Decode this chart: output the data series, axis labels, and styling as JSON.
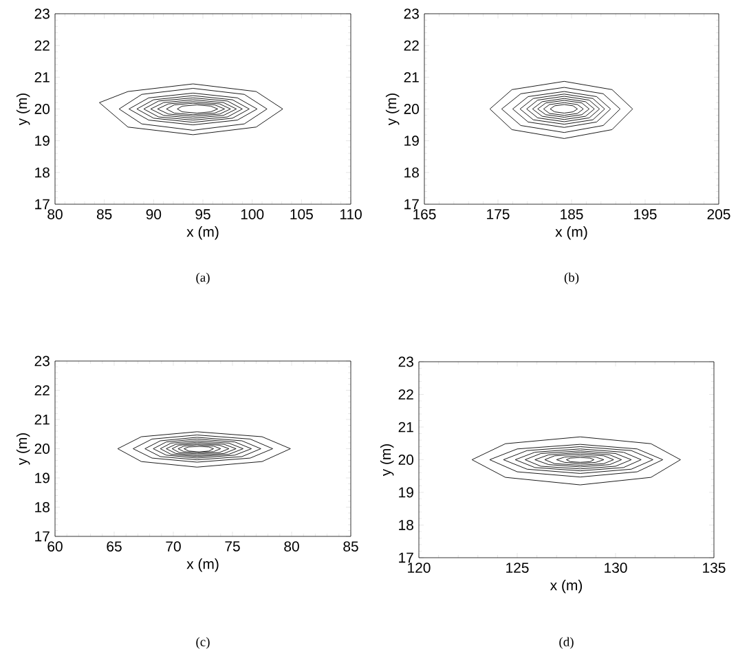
{
  "chart_data": [
    {
      "type": "line",
      "xlabel": "x (m)",
      "ylabel": "y (m)",
      "annotations": [
        "(a)"
      ],
      "marker": "none",
      "line_style": "solid",
      "xlim": [
        80,
        110
      ],
      "ylim": [
        17,
        23
      ],
      "xticks": [
        80,
        85,
        90,
        95,
        100,
        105,
        110
      ],
      "yticks": [
        17,
        18,
        19,
        20,
        21,
        22,
        23
      ],
      "series": [
        {
          "color": "#000000",
          "x": [
            84.5,
            87.4,
            94,
            100.4,
            103.1
          ],
          "values": [
            20.2,
            20.55,
            20.79,
            20.55,
            20
          ]
        },
        {
          "color": "#000000",
          "x": [
            84.5,
            87.4,
            94,
            100.4,
            103.1
          ],
          "values": [
            20.2,
            19.43,
            19.19,
            19.43,
            20
          ]
        },
        {
          "color": "#000000",
          "x": [
            86.5,
            88.8,
            94,
            99.2,
            101.5
          ],
          "values": [
            20,
            20.46,
            20.65,
            20.46,
            20
          ]
        },
        {
          "color": "#000000",
          "x": [
            86.5,
            88.8,
            94,
            99.2,
            101.5
          ],
          "values": [
            20,
            19.53,
            19.33,
            19.53,
            20
          ]
        },
        {
          "color": "#000000",
          "x": [
            87.5,
            89.5,
            94,
            98.5,
            100.5
          ],
          "values": [
            20,
            20.35,
            20.5,
            20.35,
            20
          ]
        },
        {
          "color": "#000000",
          "x": [
            87.5,
            89.5,
            94,
            98.5,
            100.5
          ],
          "values": [
            20,
            19.65,
            19.5,
            19.65,
            20
          ]
        },
        {
          "color": "#000000",
          "x": [
            88.3,
            90,
            94,
            98,
            99.7
          ],
          "values": [
            20,
            20.29,
            20.42,
            20.29,
            20
          ]
        },
        {
          "color": "#000000",
          "x": [
            88.3,
            90,
            94,
            98,
            99.7
          ],
          "values": [
            20,
            19.71,
            19.58,
            19.71,
            20
          ]
        },
        {
          "color": "#000000",
          "x": [
            89,
            90.5,
            94,
            97.5,
            99
          ],
          "values": [
            20,
            20.25,
            20.35,
            20.25,
            20
          ]
        },
        {
          "color": "#000000",
          "x": [
            89,
            90.5,
            94,
            97.5,
            99
          ],
          "values": [
            20,
            19.75,
            19.65,
            19.75,
            20
          ]
        },
        {
          "color": "#000000",
          "x": [
            89.7,
            91,
            94,
            97.1,
            98.4
          ],
          "values": [
            20,
            20.2,
            20.29,
            20.2,
            20
          ]
        },
        {
          "color": "#000000",
          "x": [
            89.7,
            91,
            94,
            97.1,
            98.4
          ],
          "values": [
            20,
            19.8,
            19.71,
            19.8,
            20
          ]
        },
        {
          "color": "#000000",
          "x": [
            90.4,
            91.5,
            94,
            96.7,
            97.8
          ],
          "values": [
            20,
            20.16,
            20.23,
            20.16,
            20
          ]
        },
        {
          "color": "#000000",
          "x": [
            90.4,
            91.5,
            94,
            96.7,
            97.8
          ],
          "values": [
            20,
            19.84,
            19.77,
            19.84,
            20
          ]
        },
        {
          "color": "#000000",
          "x": [
            91.3,
            92.1,
            94,
            96.2,
            97.2
          ],
          "values": [
            20,
            20.13,
            20.18,
            20.13,
            20
          ]
        },
        {
          "color": "#000000",
          "x": [
            91.3,
            92.1,
            94,
            96.2,
            97.2
          ],
          "values": [
            20,
            19.87,
            19.82,
            19.87,
            20
          ]
        },
        {
          "color": "#000000",
          "x": [
            92.4,
            92.9,
            94.4,
            95.8,
            96.5
          ],
          "values": [
            20,
            20.09,
            20.13,
            20.09,
            20
          ]
        },
        {
          "color": "#000000",
          "x": [
            92.4,
            92.9,
            94.4,
            95.8,
            96.5
          ],
          "values": [
            20,
            19.91,
            19.87,
            19.91,
            20
          ]
        }
      ]
    },
    {
      "type": "line",
      "xlabel": "x (m)",
      "ylabel": "y (m)",
      "annotations": [
        "(b)"
      ],
      "marker": "none",
      "line_style": "solid",
      "xlim": [
        165,
        205
      ],
      "ylim": [
        17,
        23
      ],
      "xticks": [
        165,
        175,
        185,
        195,
        205
      ],
      "yticks": [
        17,
        18,
        19,
        20,
        21,
        22,
        23
      ],
      "series": [
        {
          "color": "#000000",
          "x": [
            173.9,
            176.9,
            184,
            190.5,
            193.3
          ],
          "values": [
            20,
            20.61,
            20.87,
            20.61,
            20
          ]
        },
        {
          "color": "#000000",
          "x": [
            173.9,
            176.9,
            184,
            190.5,
            193.3
          ],
          "values": [
            20,
            19.35,
            19.07,
            19.35,
            20
          ]
        },
        {
          "color": "#000000",
          "x": [
            175.5,
            178.1,
            184,
            189.3,
            191.6
          ],
          "values": [
            20,
            20.48,
            20.68,
            20.48,
            20
          ]
        },
        {
          "color": "#000000",
          "x": [
            175.5,
            178.1,
            184,
            189.3,
            191.6
          ],
          "values": [
            20,
            19.48,
            19.26,
            19.48,
            20
          ]
        },
        {
          "color": "#000000",
          "x": [
            177,
            179.1,
            184,
            188.4,
            190.3
          ],
          "values": [
            20,
            20.39,
            20.55,
            20.39,
            20
          ]
        },
        {
          "color": "#000000",
          "x": [
            177,
            179.1,
            184,
            188.4,
            190.3
          ],
          "values": [
            20,
            19.59,
            19.42,
            19.59,
            20
          ]
        },
        {
          "color": "#000000",
          "x": [
            178,
            179.8,
            184,
            187.9,
            189.5
          ],
          "values": [
            20,
            20.33,
            20.47,
            20.33,
            20
          ]
        },
        {
          "color": "#000000",
          "x": [
            178,
            179.8,
            184,
            187.9,
            189.5
          ],
          "values": [
            20,
            19.66,
            19.52,
            19.66,
            20
          ]
        },
        {
          "color": "#000000",
          "x": [
            178.9,
            180.4,
            184,
            187.4,
            188.8
          ],
          "values": [
            20,
            20.28,
            20.4,
            20.28,
            20
          ]
        },
        {
          "color": "#000000",
          "x": [
            178.9,
            180.4,
            184,
            187.4,
            188.8
          ],
          "values": [
            20,
            19.72,
            19.6,
            19.72,
            20
          ]
        },
        {
          "color": "#000000",
          "x": [
            179.7,
            181,
            184,
            186.9,
            188.1
          ],
          "values": [
            20,
            20.23,
            20.33,
            20.23,
            20
          ]
        },
        {
          "color": "#000000",
          "x": [
            179.7,
            181,
            184,
            186.9,
            188.1
          ],
          "values": [
            20,
            19.77,
            19.67,
            19.77,
            20
          ]
        },
        {
          "color": "#000000",
          "x": [
            180.4,
            181.5,
            184,
            186.4,
            187.4
          ],
          "values": [
            20,
            20.19,
            20.27,
            20.19,
            20
          ]
        },
        {
          "color": "#000000",
          "x": [
            180.4,
            181.5,
            184,
            186.4,
            187.4
          ],
          "values": [
            20,
            19.82,
            19.74,
            19.82,
            20
          ]
        },
        {
          "color": "#000000",
          "x": [
            181.2,
            182,
            184,
            185.8,
            186.6
          ],
          "values": [
            20,
            20.14,
            20.2,
            20.14,
            20
          ]
        },
        {
          "color": "#000000",
          "x": [
            181.2,
            182,
            184,
            185.8,
            186.6
          ],
          "values": [
            20,
            19.86,
            19.8,
            19.86,
            20
          ]
        },
        {
          "color": "#000000",
          "x": [
            182.1,
            182.7,
            184,
            185.2,
            185.8
          ],
          "values": [
            20,
            20.1,
            20.14,
            20.1,
            20
          ]
        },
        {
          "color": "#000000",
          "x": [
            182.1,
            182.7,
            184,
            185.2,
            185.8
          ],
          "values": [
            20,
            19.91,
            19.87,
            19.91,
            20
          ]
        }
      ]
    },
    {
      "type": "line",
      "xlabel": "x (m)",
      "ylabel": "y (m)",
      "annotations": [
        "(c)"
      ],
      "marker": "none",
      "line_style": "solid",
      "xlim": [
        60,
        85
      ],
      "ylim": [
        17,
        23
      ],
      "xticks": [
        60,
        65,
        70,
        75,
        80,
        85
      ],
      "yticks": [
        17,
        18,
        19,
        20,
        21,
        22,
        23
      ],
      "series": [
        {
          "color": "#000000",
          "x": [
            65.3,
            67.3,
            72,
            77.5,
            79.9
          ],
          "values": [
            20,
            20.41,
            20.58,
            20.41,
            20
          ]
        },
        {
          "color": "#000000",
          "x": [
            65.3,
            67.3,
            72,
            77.5,
            79.9
          ],
          "values": [
            20,
            19.56,
            19.37,
            19.56,
            20
          ]
        },
        {
          "color": "#000000",
          "x": [
            66.6,
            68.2,
            72,
            76.5,
            78.4
          ],
          "values": [
            20,
            20.33,
            20.47,
            20.33,
            20
          ]
        },
        {
          "color": "#000000",
          "x": [
            66.6,
            68.2,
            72,
            76.5,
            78.4
          ],
          "values": [
            20,
            19.68,
            19.54,
            19.68,
            20
          ]
        },
        {
          "color": "#000000",
          "x": [
            67.6,
            68.9,
            72,
            75.8,
            77.4
          ],
          "values": [
            20,
            20.27,
            20.39,
            20.27,
            20
          ]
        },
        {
          "color": "#000000",
          "x": [
            67.6,
            68.9,
            72,
            75.8,
            77.4
          ],
          "values": [
            20,
            19.73,
            19.62,
            19.73,
            20
          ]
        },
        {
          "color": "#000000",
          "x": [
            68.3,
            69.4,
            72,
            75.2,
            76.6
          ],
          "values": [
            20,
            20.23,
            20.33,
            20.23,
            20
          ]
        },
        {
          "color": "#000000",
          "x": [
            68.3,
            69.4,
            72,
            75.2,
            76.6
          ],
          "values": [
            20,
            19.78,
            19.68,
            19.78,
            20
          ]
        },
        {
          "color": "#000000",
          "x": [
            68.9,
            69.8,
            72,
            74.7,
            75.9
          ],
          "values": [
            20,
            20.19,
            20.27,
            20.19,
            20
          ]
        },
        {
          "color": "#000000",
          "x": [
            68.9,
            69.8,
            72,
            74.7,
            75.9
          ],
          "values": [
            20,
            19.81,
            19.73,
            19.81,
            20
          ]
        },
        {
          "color": "#000000",
          "x": [
            69.4,
            70.2,
            72,
            74.3,
            75.3
          ],
          "values": [
            20,
            20.15,
            20.22,
            20.15,
            20
          ]
        },
        {
          "color": "#000000",
          "x": [
            69.4,
            70.2,
            72,
            74.3,
            75.3
          ],
          "values": [
            20,
            19.84,
            19.77,
            19.84,
            20
          ]
        },
        {
          "color": "#000000",
          "x": [
            69.9,
            70.5,
            72,
            73.9,
            74.7
          ],
          "values": [
            20,
            20.12,
            20.17,
            20.12,
            20
          ]
        },
        {
          "color": "#000000",
          "x": [
            69.9,
            70.5,
            72,
            73.9,
            74.7
          ],
          "values": [
            20,
            19.87,
            19.82,
            19.87,
            20
          ]
        },
        {
          "color": "#000000",
          "x": [
            70.4,
            70.9,
            72,
            73.4,
            74
          ],
          "values": [
            20,
            20.09,
            20.13,
            20.09,
            20
          ]
        },
        {
          "color": "#000000",
          "x": [
            70.4,
            70.9,
            72,
            73.4,
            74
          ],
          "values": [
            20,
            19.9,
            19.86,
            19.9,
            20
          ]
        },
        {
          "color": "#000000",
          "x": [
            70.9,
            71.3,
            72.2,
            73,
            73.4
          ],
          "values": [
            20,
            20.06,
            20.08,
            20.06,
            20
          ]
        },
        {
          "color": "#000000",
          "x": [
            70.9,
            71.3,
            72.2,
            73,
            73.4
          ],
          "values": [
            20,
            19.92,
            19.89,
            19.92,
            20
          ]
        }
      ]
    },
    {
      "type": "line",
      "xlabel": "x (m)",
      "ylabel": "y (m)",
      "annotations": [
        "(d)"
      ],
      "marker": "none",
      "line_style": "solid",
      "xlim": [
        120,
        135
      ],
      "ylim": [
        17,
        23
      ],
      "xticks": [
        120,
        125,
        130,
        135
      ],
      "yticks": [
        17,
        18,
        19,
        20,
        21,
        22,
        23
      ],
      "series": [
        {
          "color": "#000000",
          "x": [
            122.7,
            124.4,
            128.2,
            131.8,
            133.3
          ],
          "values": [
            20,
            20.49,
            20.7,
            20.49,
            20
          ]
        },
        {
          "color": "#000000",
          "x": [
            122.7,
            124.4,
            128.2,
            131.8,
            133.3
          ],
          "values": [
            20,
            19.46,
            19.23,
            19.46,
            20
          ]
        },
        {
          "color": "#000000",
          "x": [
            123.6,
            125,
            128.2,
            131.1,
            132.4
          ],
          "values": [
            20,
            20.33,
            20.47,
            20.33,
            20
          ]
        },
        {
          "color": "#000000",
          "x": [
            123.6,
            125,
            128.2,
            131.1,
            132.4
          ],
          "values": [
            20,
            19.63,
            19.47,
            19.63,
            20
          ]
        },
        {
          "color": "#000000",
          "x": [
            124.3,
            125.5,
            128.2,
            130.8,
            131.9
          ],
          "values": [
            20,
            20.28,
            20.4,
            20.28,
            20
          ]
        },
        {
          "color": "#000000",
          "x": [
            124.3,
            125.5,
            128.2,
            130.8,
            131.9
          ],
          "values": [
            20,
            19.71,
            19.58,
            19.71,
            20
          ]
        },
        {
          "color": "#000000",
          "x": [
            124.9,
            125.9,
            128.2,
            130.4,
            131.3
          ],
          "values": [
            20,
            20.23,
            20.33,
            20.23,
            20
          ]
        },
        {
          "color": "#000000",
          "x": [
            124.9,
            125.9,
            128.2,
            130.4,
            131.3
          ],
          "values": [
            20,
            19.76,
            19.66,
            19.76,
            20
          ]
        },
        {
          "color": "#000000",
          "x": [
            125.4,
            126.2,
            128.2,
            130,
            130.8
          ],
          "values": [
            20,
            20.19,
            20.27,
            20.19,
            20
          ]
        },
        {
          "color": "#000000",
          "x": [
            125.4,
            126.2,
            128.2,
            130,
            130.8
          ],
          "values": [
            20,
            19.8,
            19.72,
            19.8,
            20
          ]
        },
        {
          "color": "#000000",
          "x": [
            125.9,
            126.6,
            128.2,
            129.7,
            130.3
          ],
          "values": [
            20,
            20.15,
            20.22,
            20.15,
            20
          ]
        },
        {
          "color": "#000000",
          "x": [
            125.9,
            126.6,
            128.2,
            129.7,
            130.3
          ],
          "values": [
            20,
            19.85,
            19.78,
            19.85,
            20
          ]
        },
        {
          "color": "#000000",
          "x": [
            126.4,
            126.9,
            128.2,
            129.4,
            129.9
          ],
          "values": [
            20,
            20.12,
            20.17,
            20.12,
            20
          ]
        },
        {
          "color": "#000000",
          "x": [
            126.4,
            126.9,
            128.2,
            129.4,
            129.9
          ],
          "values": [
            20,
            19.88,
            19.83,
            19.88,
            20
          ]
        },
        {
          "color": "#000000",
          "x": [
            127,
            127.4,
            128.2,
            129,
            129.4
          ],
          "values": [
            20,
            20.08,
            20.12,
            20.08,
            20
          ]
        },
        {
          "color": "#000000",
          "x": [
            127,
            127.4,
            128.2,
            129,
            129.4
          ],
          "values": [
            20,
            19.92,
            19.88,
            19.92,
            20
          ]
        },
        {
          "color": "#000000",
          "x": [
            127.5,
            127.7,
            128.2,
            128.7,
            128.9
          ],
          "values": [
            20,
            20.05,
            20.07,
            20.05,
            20
          ]
        },
        {
          "color": "#000000",
          "x": [
            127.5,
            127.7,
            128.2,
            128.7,
            128.9
          ],
          "values": [
            20,
            19.94,
            19.92,
            19.94,
            20
          ]
        }
      ]
    }
  ]
}
